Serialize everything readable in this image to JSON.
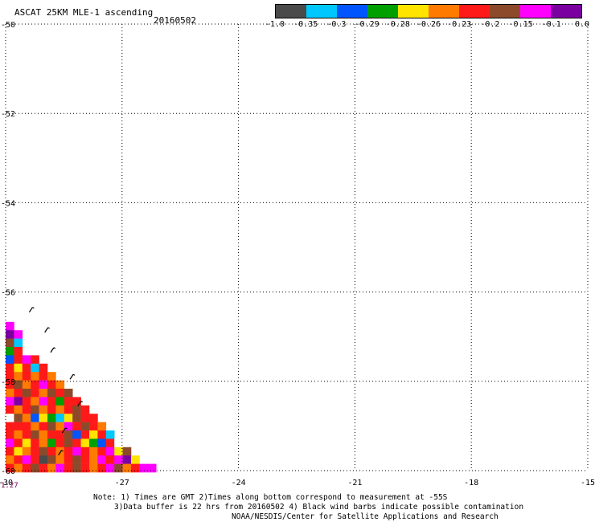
{
  "header": {
    "title": "ASCAT 25KM MLE-1 ascending",
    "date": "20160502"
  },
  "colorbar": {
    "colors": [
      "#4a4a4a",
      "#00c8ff",
      "#0055ff",
      "#00a000",
      "#ffe400",
      "#ff7a00",
      "#ff1a1a",
      "#8c4a2a",
      "#ff00ff",
      "#7a00a0"
    ],
    "labels": [
      "-1.0",
      "-0.35",
      "-0.3",
      "-0.29",
      "-0.28",
      "-0.26",
      "-0.23",
      "-0.2",
      "-0.15",
      "-0.1",
      "0.0"
    ]
  },
  "axes": {
    "x_ticks": [
      "-30",
      "-27",
      "-24",
      "-21",
      "-18",
      "-15"
    ],
    "y_ticks": [
      "-50",
      "-52",
      "-54",
      "-56",
      "-58",
      "-60"
    ]
  },
  "time_label": "1:27",
  "notes": {
    "line1": "Note: 1) Times are GMT 2)Times along bottom correspond to measurement at -55S",
    "line2": "3)Data buffer is 22 hrs from 20160502 4) Black wind barbs indicate possible contamination",
    "line3": "NOAA/NESDIS/Center for Satellite Applications and Research"
  },
  "swath": {
    "colors": [
      "#ff1a1a",
      "#ff7a00",
      "#8c4a2a",
      "#ff00ff",
      "#ffe400",
      "#0055ff",
      "#00a000",
      "#00c8ff",
      "#7a00a0",
      "#4a4a4a",
      "#ffffff"
    ],
    "rows": [
      [
        3
      ],
      [
        8,
        3
      ],
      [
        2,
        7
      ],
      [
        6,
        0
      ],
      [
        5,
        0,
        3,
        0
      ],
      [
        0,
        4,
        0,
        7,
        0
      ],
      [
        0,
        1,
        0,
        1,
        0,
        1
      ],
      [
        0,
        2,
        1,
        0,
        3,
        0,
        1
      ],
      [
        1,
        0,
        2,
        0,
        1,
        2,
        0,
        2
      ],
      [
        3,
        8,
        0,
        1,
        3,
        0,
        6,
        0,
        0
      ],
      [
        0,
        1,
        0,
        2,
        1,
        0,
        1,
        0,
        2,
        0
      ],
      [
        10,
        2,
        1,
        5,
        4,
        6,
        7,
        4,
        2,
        0,
        0
      ],
      [
        0,
        0,
        0,
        1,
        0,
        2,
        1,
        3,
        0,
        2,
        0,
        1
      ],
      [
        0,
        1,
        0,
        2,
        1,
        0,
        0,
        2,
        5,
        0,
        4,
        0,
        7
      ],
      [
        3,
        0,
        4,
        0,
        1,
        6,
        0,
        2,
        0,
        4,
        6,
        5,
        0,
        10
      ],
      [
        0,
        4,
        1,
        0,
        2,
        0,
        1,
        0,
        3,
        0,
        1,
        0,
        3,
        4,
        2
      ],
      [
        1,
        0,
        3,
        0,
        9,
        2,
        1,
        0,
        2,
        0,
        1,
        3,
        0,
        3,
        8,
        4
      ],
      [
        0,
        1,
        0,
        2,
        0,
        1,
        3,
        0,
        2,
        0,
        1,
        0,
        3,
        2,
        1,
        0,
        3,
        3
      ]
    ]
  },
  "barbs": [
    {
      "lon": -29.35,
      "lat": -56.4
    },
    {
      "lon": -28.95,
      "lat": -56.85
    },
    {
      "lon": -28.8,
      "lat": -57.3
    },
    {
      "lon": -28.3,
      "lat": -57.9
    },
    {
      "lon": -28.1,
      "lat": -58.5
    },
    {
      "lon": -28.5,
      "lat": -59.1
    },
    {
      "lon": -28.6,
      "lat": -59.6
    }
  ]
}
